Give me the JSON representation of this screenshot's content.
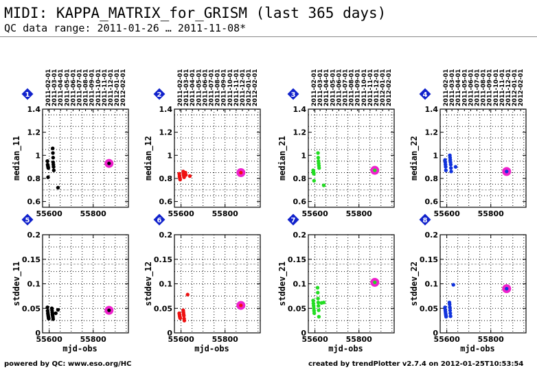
{
  "header": {
    "title": "MIDI: KAPPA_MATRIX_for_GRISM (last 365 days)",
    "subtitle": "QC data range: 2011-01-26 … 2011-11-08*"
  },
  "footer": {
    "left": "powered by QC: www.eso.org/HC",
    "right": "created by trendPlotter v2.7.4 on 2012-01-25T10:53:54"
  },
  "colors": {
    "black": "#000000",
    "red": "#ee1111",
    "green": "#22dd22",
    "blue": "#1133dd",
    "highlight": "#ee22cc",
    "badge": "#1122cc",
    "reference_line": "#999999"
  },
  "date_ticks": [
    "2011-02-01",
    "2011-03-01",
    "2011-04-01",
    "2011-05-01",
    "2011-06-01",
    "2011-07-01",
    "2011-08-01",
    "2011-09-01",
    "2011-10-01",
    "2011-11-01",
    "2011-12-01",
    "2012-01-01",
    "2012-02-01"
  ],
  "chart_data": [
    {
      "type": "scatter",
      "panel": "1",
      "color": "black",
      "xlabel": "",
      "ylabel": "median_11",
      "xlim": [
        55570,
        55960
      ],
      "ylim": [
        0.55,
        1.4
      ],
      "xticks": [
        55600,
        55800
      ],
      "yticks": [
        0.6,
        0.8,
        1,
        1.2,
        1.4
      ],
      "yticklabels": [
        "0.6",
        "0.8",
        "1",
        "1.2",
        "1.4"
      ],
      "reference_line": 0.7,
      "x": [
        55592,
        55593,
        55594,
        55595,
        55596,
        55595,
        55616,
        55617,
        55618,
        55618,
        55619,
        55620,
        55621,
        55640
      ],
      "y": [
        0.95,
        0.92,
        0.91,
        0.9,
        0.89,
        0.81,
        1.06,
        1.02,
        0.98,
        0.94,
        0.92,
        0.9,
        0.87,
        0.72
      ],
      "highlight": {
        "x": 55872,
        "y": 0.93
      }
    },
    {
      "type": "scatter",
      "panel": "2",
      "color": "red",
      "xlabel": "",
      "ylabel": "median_12",
      "xlim": [
        55570,
        55960
      ],
      "ylim": [
        0.55,
        1.4
      ],
      "xticks": [
        55600,
        55800
      ],
      "yticks": [
        0.6,
        0.8,
        1,
        1.2,
        1.4
      ],
      "yticklabels": [
        "0.6",
        "0.8",
        "1",
        "1.2",
        "1.4"
      ],
      "reference_line": 0.7,
      "x": [
        55592,
        55593,
        55594,
        55595,
        55596,
        55610,
        55611,
        55612,
        55613,
        55614,
        55620,
        55622,
        55640
      ],
      "y": [
        0.84,
        0.82,
        0.81,
        0.8,
        0.79,
        0.86,
        0.84,
        0.83,
        0.82,
        0.81,
        0.85,
        0.83,
        0.82
      ],
      "highlight": {
        "x": 55872,
        "y": 0.85
      }
    },
    {
      "type": "scatter",
      "panel": "3",
      "color": "green",
      "xlabel": "",
      "ylabel": "median_21",
      "xlim": [
        55570,
        55960
      ],
      "ylim": [
        0.55,
        1.4
      ],
      "xticks": [
        55600,
        55800
      ],
      "yticks": [
        0.6,
        0.8,
        1,
        1.2,
        1.4
      ],
      "yticklabels": [
        "0.6",
        "0.8",
        "1",
        "1.2",
        "1.4"
      ],
      "reference_line": 0.7,
      "x": [
        55592,
        55593,
        55594,
        55595,
        55596,
        55614,
        55615,
        55616,
        55617,
        55618,
        55619,
        55640
      ],
      "y": [
        0.87,
        0.86,
        0.85,
        0.84,
        0.78,
        1.02,
        0.98,
        0.95,
        0.93,
        0.91,
        0.89,
        0.74
      ],
      "highlight": {
        "x": 55872,
        "y": 0.87
      }
    },
    {
      "type": "scatter",
      "panel": "4",
      "color": "blue",
      "xlabel": "",
      "ylabel": "median_22",
      "xlim": [
        55570,
        55960
      ],
      "ylim": [
        0.55,
        1.4
      ],
      "xticks": [
        55600,
        55800
      ],
      "yticks": [
        0.6,
        0.8,
        1,
        1.2,
        1.4
      ],
      "yticklabels": [
        "0.6",
        "0.8",
        "1",
        "1.2",
        "1.4"
      ],
      "reference_line": 0.7,
      "x": [
        55592,
        55593,
        55594,
        55595,
        55596,
        55614,
        55615,
        55616,
        55617,
        55618,
        55619,
        55620,
        55640
      ],
      "y": [
        0.96,
        0.94,
        0.92,
        0.9,
        0.87,
        1.0,
        0.98,
        0.96,
        0.94,
        0.92,
        0.89,
        0.86,
        0.9
      ],
      "highlight": {
        "x": 55872,
        "y": 0.86
      }
    },
    {
      "type": "scatter",
      "panel": "5",
      "color": "black",
      "xlabel": "mjd-obs",
      "ylabel": "stddev_11",
      "xlim": [
        55570,
        55960
      ],
      "ylim": [
        0,
        0.2
      ],
      "xticks": [
        55600,
        55800
      ],
      "yticks": [
        0,
        0.05,
        0.1,
        0.15,
        0.2
      ],
      "yticklabels": [
        "0",
        "0.05",
        "0.1",
        "0.15",
        "0.2"
      ],
      "reference_line": 0.14,
      "x": [
        55592,
        55593,
        55594,
        55595,
        55596,
        55597,
        55598,
        55612,
        55613,
        55614,
        55615,
        55616,
        55617,
        55618,
        55630,
        55640
      ],
      "y": [
        0.052,
        0.045,
        0.04,
        0.037,
        0.034,
        0.031,
        0.029,
        0.05,
        0.046,
        0.042,
        0.038,
        0.035,
        0.032,
        0.028,
        0.04,
        0.047
      ],
      "highlight": {
        "x": 55872,
        "y": 0.046
      }
    },
    {
      "type": "scatter",
      "panel": "6",
      "color": "red",
      "xlabel": "mjd-obs",
      "ylabel": "stddev_12",
      "xlim": [
        55570,
        55960
      ],
      "ylim": [
        0,
        0.2
      ],
      "xticks": [
        55600,
        55800
      ],
      "yticks": [
        0,
        0.05,
        0.1,
        0.15,
        0.2
      ],
      "yticklabels": [
        "0",
        "0.05",
        "0.1",
        "0.15",
        "0.2"
      ],
      "reference_line": 0.14,
      "x": [
        55592,
        55593,
        55594,
        55595,
        55596,
        55610,
        55611,
        55612,
        55613,
        55614,
        55615,
        55630
      ],
      "y": [
        0.04,
        0.037,
        0.034,
        0.032,
        0.03,
        0.046,
        0.042,
        0.038,
        0.035,
        0.029,
        0.025,
        0.078
      ],
      "highlight": {
        "x": 55872,
        "y": 0.056
      }
    },
    {
      "type": "scatter",
      "panel": "7",
      "color": "green",
      "xlabel": "mjd-obs",
      "ylabel": "stddev_21",
      "xlim": [
        55570,
        55960
      ],
      "ylim": [
        0,
        0.2
      ],
      "xticks": [
        55600,
        55800
      ],
      "yticks": [
        0,
        0.05,
        0.1,
        0.15,
        0.2
      ],
      "yticklabels": [
        "0",
        "0.05",
        "0.1",
        "0.15",
        "0.2"
      ],
      "reference_line": 0.14,
      "x": [
        55592,
        55593,
        55594,
        55595,
        55596,
        55597,
        55612,
        55613,
        55614,
        55615,
        55616,
        55617,
        55618,
        55630,
        55640
      ],
      "y": [
        0.066,
        0.06,
        0.055,
        0.05,
        0.045,
        0.04,
        0.092,
        0.082,
        0.07,
        0.062,
        0.055,
        0.046,
        0.033,
        0.061,
        0.062
      ],
      "highlight": {
        "x": 55872,
        "y": 0.103
      }
    },
    {
      "type": "scatter",
      "panel": "8",
      "color": "blue",
      "xlabel": "mjd-obs",
      "ylabel": "stddev_22",
      "xlim": [
        55570,
        55960
      ],
      "ylim": [
        0,
        0.2
      ],
      "xticks": [
        55600,
        55800
      ],
      "yticks": [
        0,
        0.05,
        0.1,
        0.15,
        0.2
      ],
      "yticklabels": [
        "0",
        "0.05",
        "0.1",
        "0.15",
        "0.2"
      ],
      "reference_line": 0.14,
      "x": [
        55592,
        55593,
        55594,
        55595,
        55596,
        55597,
        55612,
        55613,
        55614,
        55615,
        55616,
        55617,
        55630
      ],
      "y": [
        0.052,
        0.047,
        0.043,
        0.039,
        0.036,
        0.033,
        0.062,
        0.058,
        0.052,
        0.046,
        0.04,
        0.034,
        0.098
      ],
      "highlight": {
        "x": 55872,
        "y": 0.09
      }
    }
  ]
}
